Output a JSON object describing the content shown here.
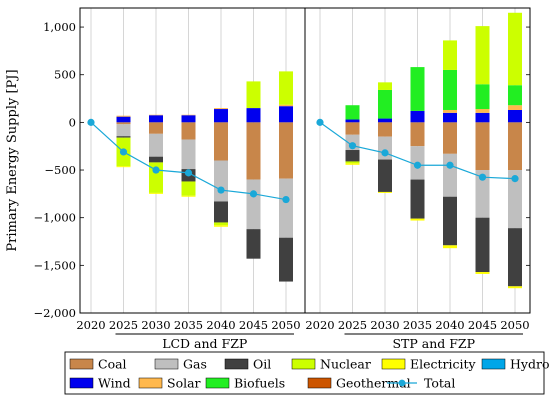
{
  "chart_data": {
    "type": "bar",
    "ylabel": "Primary Energy Supply [PJ]",
    "ylim": [
      -2000,
      1200
    ],
    "yticks": [
      -2000,
      -1500,
      -1000,
      -500,
      0,
      500,
      1000
    ],
    "ytick_labels": [
      "−2,000",
      "−1,500",
      "−1,000",
      "−500",
      "0",
      "500",
      "1,000"
    ],
    "grid": "vertical",
    "legend_position": "bottom",
    "groups": [
      {
        "label": "LCD and FZP",
        "years": [
          "2020",
          "2025",
          "2030",
          "2035",
          "2040",
          "2045",
          "2050"
        ],
        "bars": [
          null,
          {
            "Coal": -20,
            "Gas": -125,
            "Oil": -15,
            "Nuclear": -300,
            "Electricity": -10,
            "Wind": 60,
            "Solar": 10
          },
          {
            "Coal": -120,
            "Gas": -240,
            "Oil": -60,
            "Nuclear": -320,
            "Electricity": -10,
            "Wind": 75,
            "Solar": 5
          },
          {
            "Coal": -180,
            "Gas": -310,
            "Oil": -130,
            "Nuclear": -150,
            "Electricity": -10,
            "Wind": 75,
            "Solar": 5
          },
          {
            "Coal": -400,
            "Gas": -430,
            "Oil": -220,
            "Nuclear": -30,
            "Electricity": -15,
            "Wind": 140,
            "Solar": 10
          },
          {
            "Coal": -600,
            "Gas": -520,
            "Oil": -310,
            "Nuclear": 280,
            "Electricity": 0,
            "Wind": 150,
            "Solar": 0
          },
          {
            "Coal": -590,
            "Gas": -620,
            "Oil": -460,
            "Nuclear": 350,
            "Electricity": 0,
            "Wind": 170,
            "Solar": 15
          }
        ]
      },
      {
        "label": "STP and FZP",
        "years": [
          "2020",
          "2025",
          "2030",
          "2035",
          "2040",
          "2045",
          "2050"
        ],
        "bars": [
          null,
          {
            "Coal": -130,
            "Gas": -160,
            "Oil": -120,
            "Nuclear": -20,
            "Electricity": -15,
            "Wind": 30,
            "Biofuels": 150
          },
          {
            "Coal": -150,
            "Gas": -240,
            "Oil": -340,
            "Nuclear": 80,
            "Electricity": -10,
            "Wind": 40,
            "Biofuels": 300
          },
          {
            "Coal": -250,
            "Gas": -350,
            "Oil": -410,
            "Nuclear": 0,
            "Electricity": -20,
            "Wind": 120,
            "Biofuels": 460
          },
          {
            "Coal": -330,
            "Gas": -450,
            "Oil": -510,
            "Nuclear": 310,
            "Electricity": -30,
            "Wind": 100,
            "Solar": 30,
            "Biofuels": 420
          },
          {
            "Coal": -500,
            "Gas": -500,
            "Oil": -570,
            "Nuclear": 610,
            "Electricity": -20,
            "Wind": 100,
            "Solar": 40,
            "Biofuels": 260
          },
          {
            "Coal": -500,
            "Gas": -610,
            "Oil": -610,
            "Nuclear": 760,
            "Electricity": -20,
            "Wind": 130,
            "Solar": 50,
            "Biofuels": 210
          }
        ]
      }
    ],
    "total_series": [
      {
        "name": "Total",
        "x": [
          "2020",
          "2025",
          "2030",
          "2035",
          "2040",
          "2045",
          "2050"
        ],
        "values": [
          0,
          -310,
          -500,
          -530,
          -710,
          -750,
          -810
        ]
      },
      {
        "name": "Total",
        "x": [
          "2020",
          "2025",
          "2030",
          "2035",
          "2040",
          "2045",
          "2050"
        ],
        "values": [
          0,
          -245,
          -320,
          -450,
          -450,
          -575,
          -590
        ]
      }
    ],
    "legend": [
      {
        "name": "Coal",
        "color": "#c8864a",
        "kind": "bar"
      },
      {
        "name": "Gas",
        "color": "#bfbfbf",
        "kind": "bar"
      },
      {
        "name": "Oil",
        "color": "#404040",
        "kind": "bar"
      },
      {
        "name": "Nuclear",
        "color": "#ccff00",
        "kind": "bar"
      },
      {
        "name": "Electricity",
        "color": "#ffff00",
        "kind": "bar"
      },
      {
        "name": "Hydro",
        "color": "#00a6e8",
        "kind": "bar"
      },
      {
        "name": "Wind",
        "color": "#0000ee",
        "kind": "bar"
      },
      {
        "name": "Solar",
        "color": "#ffb84d",
        "kind": "bar"
      },
      {
        "name": "Biofuels",
        "color": "#22ee22",
        "kind": "bar"
      },
      {
        "name": "Geothermal",
        "color": "#cc5500",
        "kind": "bar"
      },
      {
        "name": "Total",
        "color": "#1aa8d8",
        "kind": "line"
      }
    ]
  }
}
